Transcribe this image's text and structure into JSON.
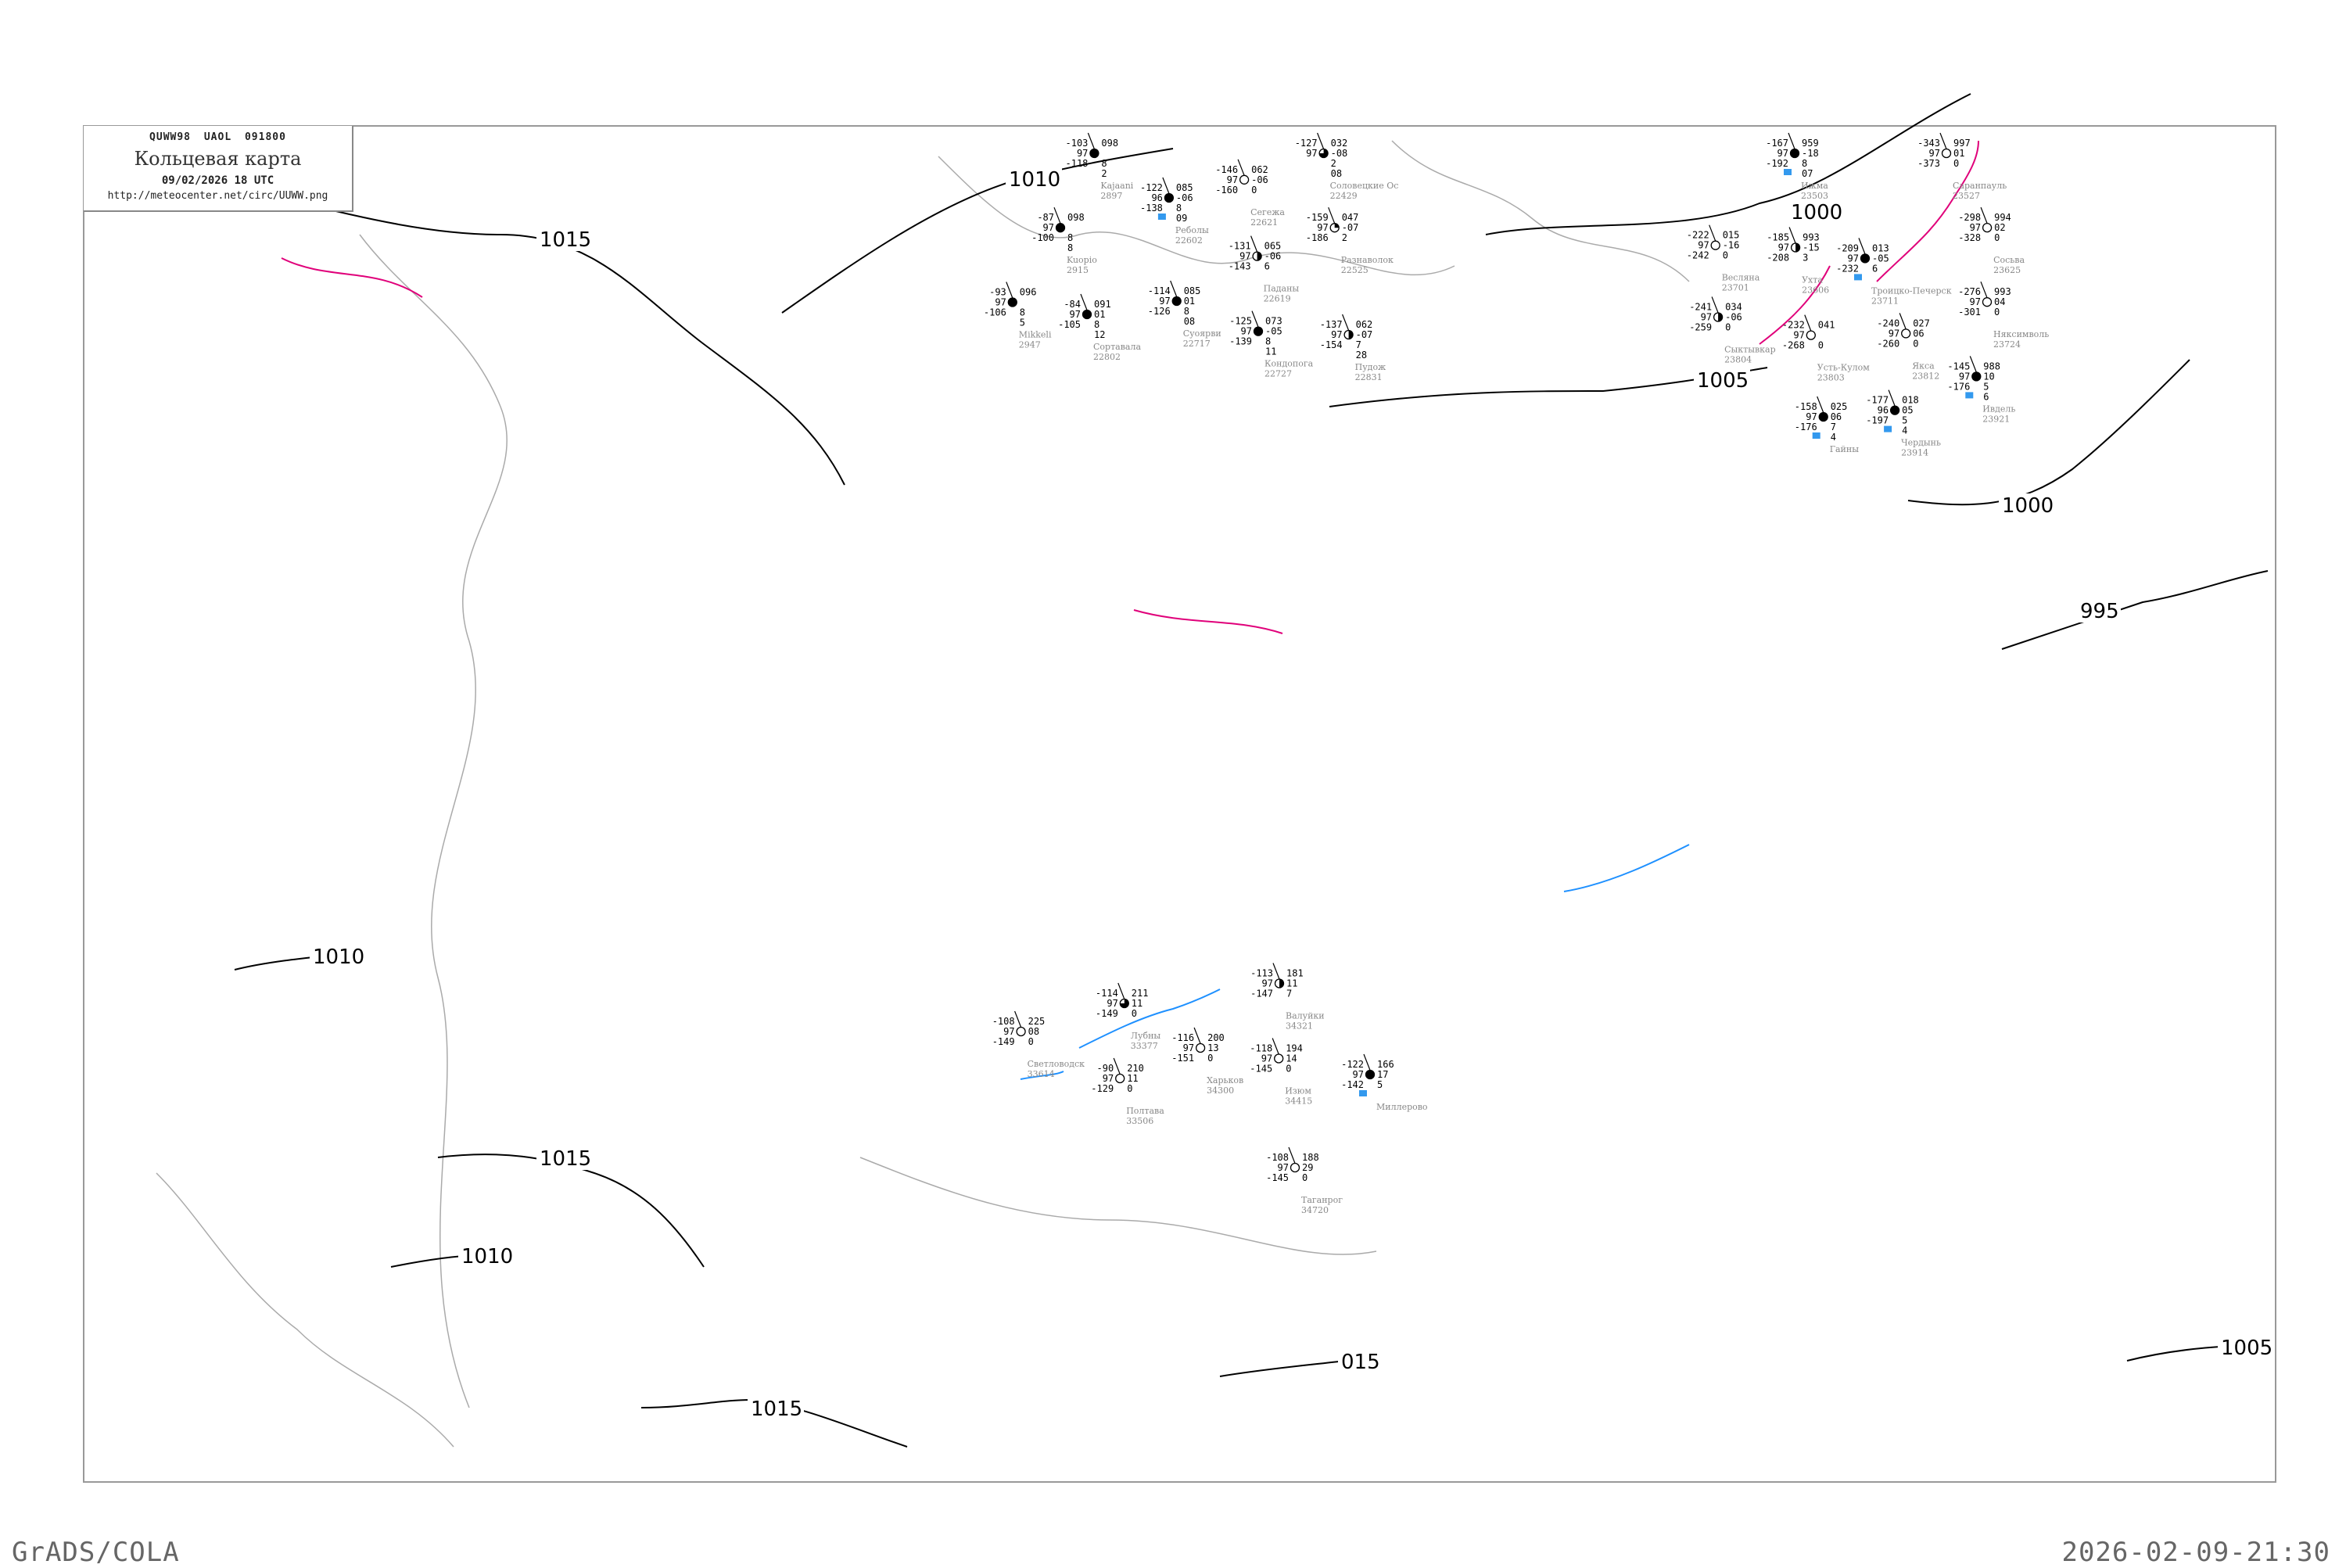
{
  "header": {
    "code": "QUWW98 UAOL 091800",
    "title": "Кольцевая карта",
    "datetime": "09/02/2026 18 UTC",
    "url": "http://meteocenter.net/circ/UUWW.png"
  },
  "footer": {
    "left": "GrADS/COLA",
    "right": "2026-02-09-21:30"
  },
  "colors": {
    "isobar": "#000000",
    "coast": "#999999",
    "front": "#e0007a",
    "isotherm": "#1e90ff",
    "snow_marker": "#3399ee",
    "station_name": "#888888"
  },
  "isobars": [
    {
      "label": "1015"
    },
    {
      "label": "1010"
    },
    {
      "label": "1000"
    },
    {
      "label": "1005"
    },
    {
      "label": "1000"
    },
    {
      "label": "995"
    },
    {
      "label": "1015"
    },
    {
      "label": "1010"
    },
    {
      "label": "1005"
    },
    {
      "label": "1015"
    },
    {
      "label": "1010"
    },
    {
      "label": "015"
    }
  ],
  "stations": [
    {
      "name": "Kajaani",
      "id": "2897",
      "t": "-103",
      "vis": "97",
      "td": "-118",
      "p": "098",
      "tend": "",
      "c1": "8",
      "c2": "2",
      "cover": "full",
      "snow": false
    },
    {
      "name": "Kuopio",
      "id": "2915",
      "t": "-87",
      "vis": "97",
      "td": "-100",
      "p": "098",
      "tend": "",
      "c1": "8",
      "c2": "8",
      "cover": "full",
      "snow": false
    },
    {
      "name": "Реболы",
      "id": "22602",
      "t": "-122",
      "vis": "96",
      "td": "-138",
      "p": "085",
      "tend": "-06",
      "c1": "8",
      "c2": "09",
      "cover": "full",
      "snow": true
    },
    {
      "name": "Сегежа",
      "id": "22621",
      "t": "-146",
      "vis": "97",
      "td": "-160",
      "p": "062",
      "tend": "-06",
      "c1": "0",
      "c2": "",
      "cover": "empty",
      "snow": false
    },
    {
      "name": "Паданы",
      "id": "22619",
      "t": "-131",
      "vis": "97",
      "td": "-143",
      "p": "065",
      "tend": "-06",
      "c1": "6",
      "c2": "",
      "cover": "half",
      "snow": false
    },
    {
      "name": "Mikkeli",
      "id": "2947",
      "t": "-93",
      "vis": "97",
      "td": "-106",
      "p": "096",
      "tend": "",
      "c1": "8",
      "c2": "5",
      "cover": "full",
      "snow": false
    },
    {
      "name": "Сортавала",
      "id": "22802",
      "t": "-84",
      "vis": "97",
      "td": "-105",
      "p": "091",
      "tend": "01",
      "c1": "8",
      "c2": "12",
      "cover": "full",
      "snow": false
    },
    {
      "name": "Суоярви",
      "id": "22717",
      "t": "-114",
      "vis": "97",
      "td": "-126",
      "p": "085",
      "tend": "01",
      "c1": "8",
      "c2": "08",
      "cover": "full",
      "snow": false
    },
    {
      "name": "Кондопога",
      "id": "22727",
      "t": "-125",
      "vis": "97",
      "td": "-139",
      "p": "073",
      "tend": "-05",
      "c1": "8",
      "c2": "11",
      "cover": "full",
      "snow": false
    },
    {
      "name": "Пудож",
      "id": "22831",
      "t": "-137",
      "vis": "97",
      "td": "-154",
      "p": "062",
      "tend": "-07",
      "c1": "7",
      "c2": "28",
      "cover": "half",
      "snow": false
    },
    {
      "name": "Соловецкие Ос",
      "id": "22429",
      "t": "-127",
      "vis": "97",
      "td": "",
      "p": "032",
      "tend": "-08",
      "c1": "2",
      "c2": "08",
      "cover": "three-quarter",
      "snow": false
    },
    {
      "name": "Разнаволок",
      "id": "22525",
      "t": "-159",
      "vis": "97",
      "td": "-186",
      "p": "047",
      "tend": "-07",
      "c1": "2",
      "c2": "",
      "cover": "quarter",
      "snow": false
    },
    {
      "name": "Ижма",
      "id": "23503",
      "t": "-167",
      "vis": "97",
      "td": "-192",
      "p": "959",
      "tend": "-18",
      "c1": "8",
      "c2": "07",
      "cover": "full",
      "snow": true
    },
    {
      "name": "Саранпауль",
      "id": "23527",
      "t": "-343",
      "vis": "97",
      "td": "-373",
      "p": "997",
      "tend": "01",
      "c1": "0",
      "c2": "",
      "cover": "empty",
      "snow": false
    },
    {
      "name": "Сосьва",
      "id": "23625",
      "t": "-298",
      "vis": "97",
      "td": "-328",
      "p": "994",
      "tend": "02",
      "c1": "0",
      "c2": "",
      "cover": "empty",
      "snow": false
    },
    {
      "name": "Ухта",
      "id": "23606",
      "t": "-185",
      "vis": "97",
      "td": "-208",
      "p": "993",
      "tend": "-15",
      "c1": "3",
      "c2": "",
      "cover": "half",
      "snow": false
    },
    {
      "name": "Весляна",
      "id": "23701",
      "t": "-222",
      "vis": "97",
      "td": "-242",
      "p": "015",
      "tend": "-16",
      "c1": "0",
      "c2": "",
      "cover": "empty",
      "snow": false
    },
    {
      "name": "Троицко-Печерск",
      "id": "23711",
      "t": "-209",
      "vis": "97",
      "td": "-232",
      "p": "013",
      "tend": "-05",
      "c1": "6",
      "c2": "",
      "cover": "full",
      "snow": true
    },
    {
      "name": "Няксимволь",
      "id": "23724",
      "t": "-276",
      "vis": "97",
      "td": "-301",
      "p": "993",
      "tend": "04",
      "c1": "0",
      "c2": "",
      "cover": "empty",
      "snow": false
    },
    {
      "name": "Якса",
      "id": "23812",
      "t": "-240",
      "vis": "97",
      "td": "-260",
      "p": "027",
      "tend": "06",
      "c1": "0",
      "c2": "",
      "cover": "empty",
      "snow": false
    },
    {
      "name": "Усть-Кулом",
      "id": "23803",
      "t": "-232",
      "vis": "97",
      "td": "-268",
      "p": "041",
      "tend": "",
      "c1": "0",
      "c2": "",
      "cover": "empty",
      "snow": false
    },
    {
      "name": "Сыктывкар",
      "id": "23804",
      "t": "-241",
      "vis": "97",
      "td": "-259",
      "p": "034",
      "tend": "-06",
      "c1": "0",
      "c2": "",
      "cover": "half",
      "snow": false
    },
    {
      "name": "Ивдель",
      "id": "23921",
      "t": "-145",
      "vis": "97",
      "td": "-176",
      "p": "988",
      "tend": "10",
      "c1": "5",
      "c2": "6",
      "cover": "full",
      "snow": true
    },
    {
      "name": "Гайны",
      "id": "",
      "t": "-158",
      "vis": "97",
      "td": "-176",
      "p": "025",
      "tend": "06",
      "c1": "7",
      "c2": "4",
      "cover": "full",
      "snow": true
    },
    {
      "name": "Чердынь",
      "id": "23914",
      "t": "-177",
      "vis": "96",
      "td": "-197",
      "p": "018",
      "tend": "05",
      "c1": "5",
      "c2": "4",
      "cover": "full",
      "snow": true
    },
    {
      "name": "Лубны",
      "id": "33377",
      "t": "-114",
      "vis": "97",
      "td": "-149",
      "p": "211",
      "tend": "11",
      "c1": "0",
      "c2": "",
      "cover": "three-quarter",
      "snow": false
    },
    {
      "name": "Светловодск",
      "id": "33614",
      "t": "-108",
      "vis": "97",
      "td": "-149",
      "p": "225",
      "tend": "08",
      "c1": "0",
      "c2": "",
      "cover": "empty",
      "snow": false
    },
    {
      "name": "Полтава",
      "id": "33506",
      "t": "-90",
      "vis": "97",
      "td": "-129",
      "p": "210",
      "tend": "11",
      "c1": "0",
      "c2": "",
      "cover": "empty",
      "snow": false
    },
    {
      "name": "Харьков",
      "id": "34300",
      "t": "-116",
      "vis": "97",
      "td": "-151",
      "p": "200",
      "tend": "13",
      "c1": "0",
      "c2": "",
      "cover": "empty",
      "snow": false
    },
    {
      "name": "Изюм",
      "id": "34415",
      "t": "-118",
      "vis": "97",
      "td": "-145",
      "p": "194",
      "tend": "14",
      "c1": "0",
      "c2": "",
      "cover": "empty",
      "snow": false
    },
    {
      "name": "Валуйки",
      "id": "34321",
      "t": "-113",
      "vis": "97",
      "td": "-147",
      "p": "181",
      "tend": "11",
      "c1": "7",
      "c2": "",
      "cover": "half",
      "snow": false
    },
    {
      "name": "Таганрог",
      "id": "34720",
      "t": "-108",
      "vis": "97",
      "td": "-145",
      "p": "188",
      "tend": "29",
      "c1": "0",
      "c2": "",
      "cover": "empty",
      "snow": false
    },
    {
      "name": "Миллерово",
      "id": "",
      "t": "-122",
      "vis": "97",
      "td": "-142",
      "p": "166",
      "tend": "17",
      "c1": "5",
      "c2": "",
      "cover": "full",
      "snow": true
    }
  ]
}
